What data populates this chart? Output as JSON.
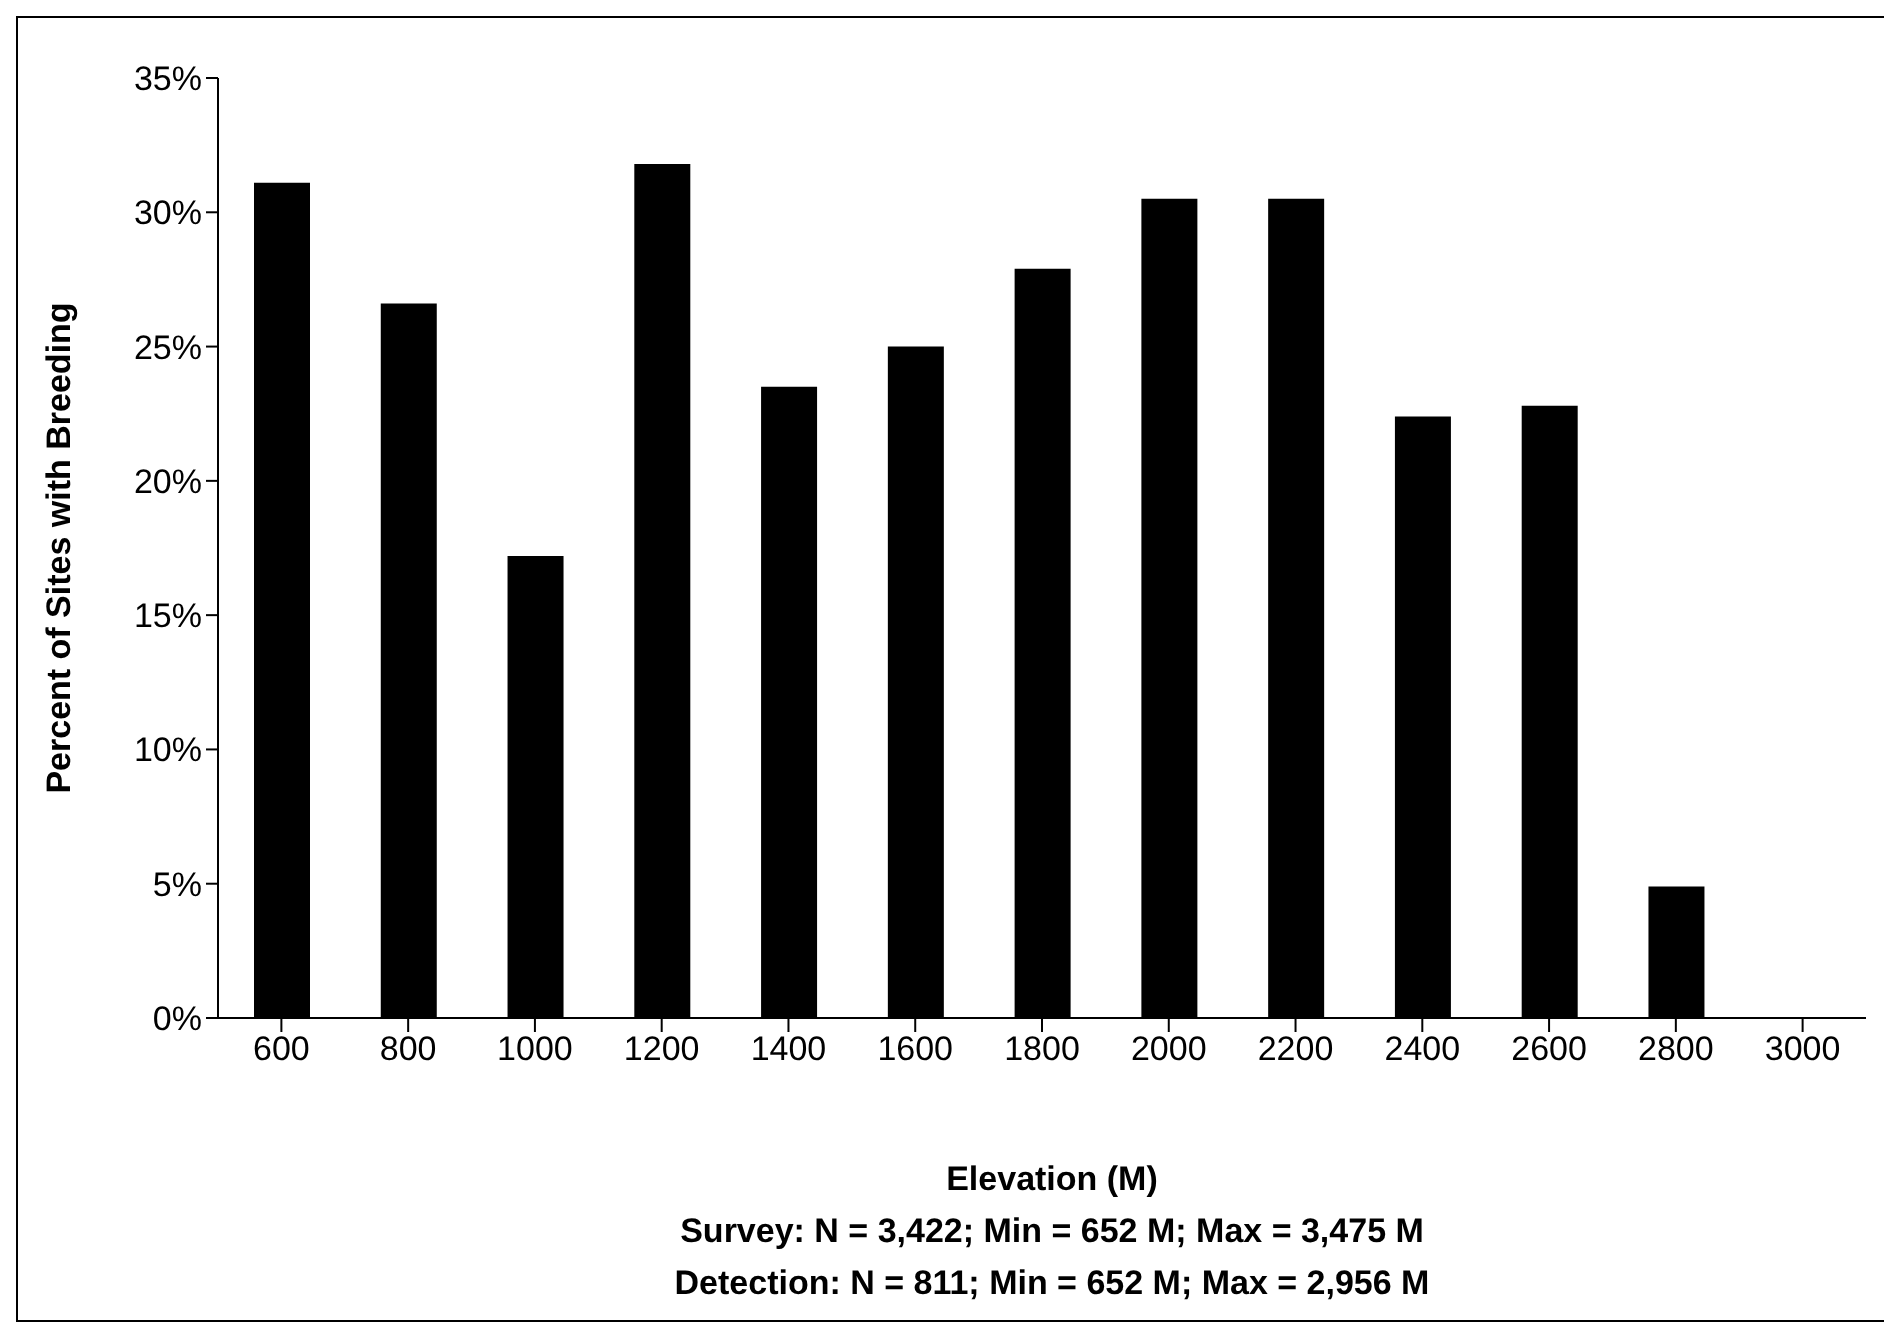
{
  "chart_data": {
    "type": "bar",
    "xlabel": "Elevation (M)",
    "ylabel": "Percent of Sites with Breeding",
    "categories": [
      "600",
      "800",
      "1000",
      "1200",
      "1400",
      "1600",
      "1800",
      "2000",
      "2200",
      "2400",
      "2600",
      "2800",
      "3000"
    ],
    "values": [
      31.1,
      26.6,
      17.2,
      31.8,
      23.5,
      25.0,
      27.9,
      30.5,
      30.5,
      22.4,
      22.8,
      4.9,
      0
    ],
    "color": "#000000",
    "ylim": [
      0,
      35
    ],
    "yticks": [
      {
        "value": 0,
        "label": "0%"
      },
      {
        "value": 5,
        "label": "5%"
      },
      {
        "value": 10,
        "label": "10%"
      },
      {
        "value": 15,
        "label": "15%"
      },
      {
        "value": 20,
        "label": "20%"
      },
      {
        "value": 25,
        "label": "25%"
      },
      {
        "value": 30,
        "label": "30%"
      },
      {
        "value": 35,
        "label": "35%"
      }
    ],
    "annotations": [
      "Survey: N = 3,422; Min = 652 M; Max = 3,475 M",
      "Detection: N = 811; Min = 652 M; Max = 2,956 M"
    ],
    "grid": false,
    "legend": false
  }
}
